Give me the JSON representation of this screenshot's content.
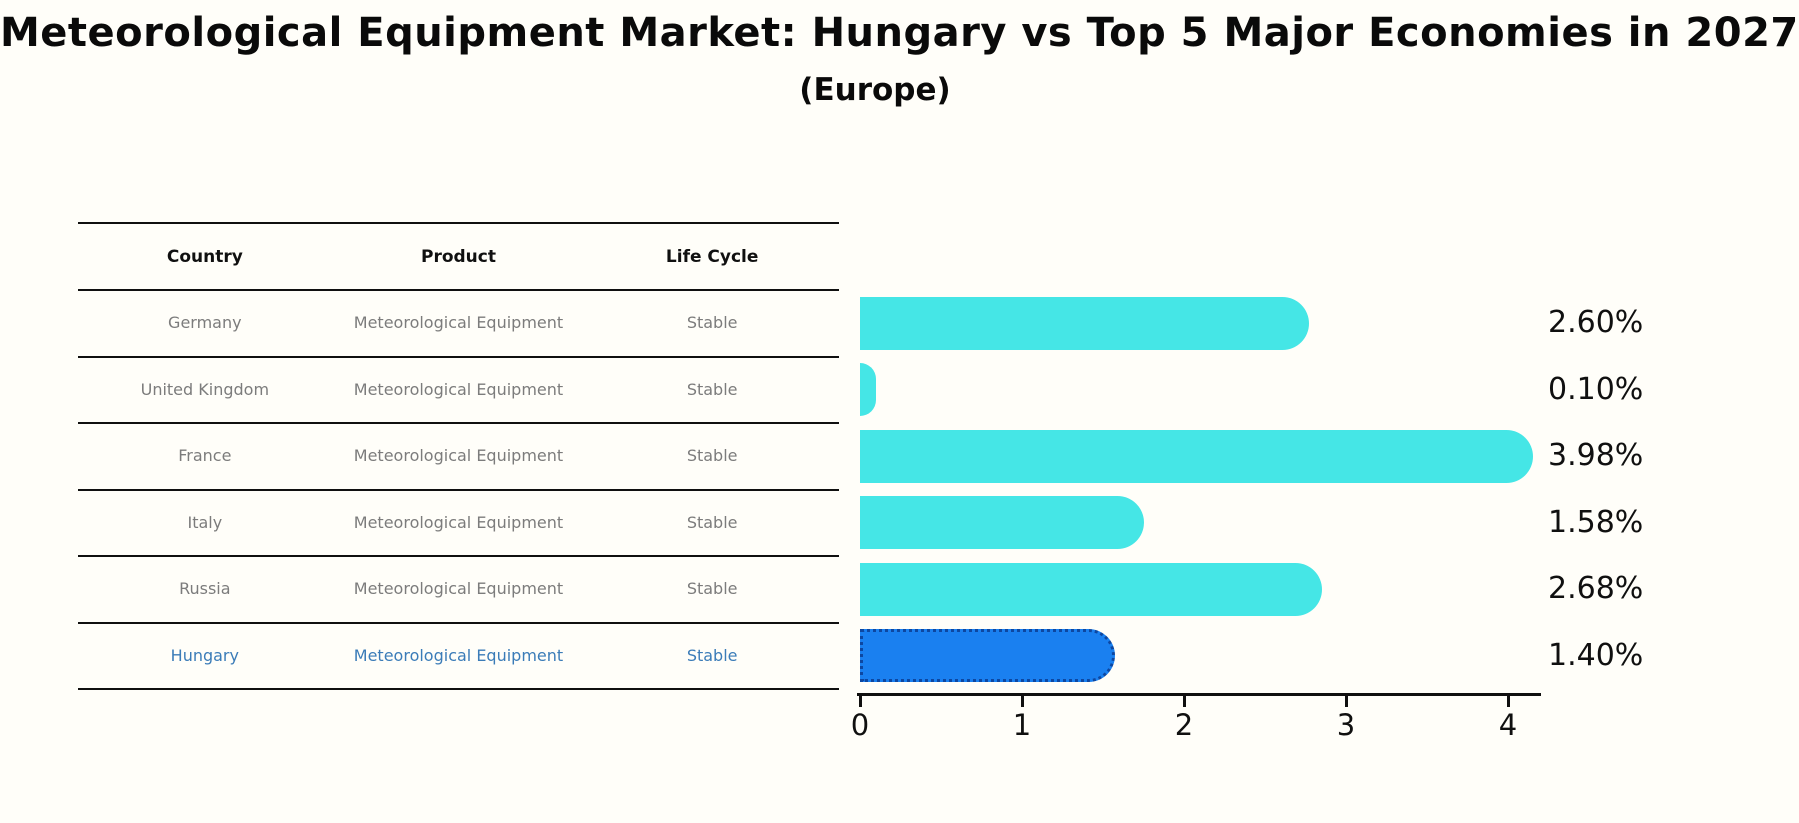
{
  "title": "Meteorological Equipment Market: Hungary vs Top 5 Major Economies in 2027",
  "subtitle": "(Europe)",
  "table": {
    "headers": [
      "Country",
      "Product",
      "Life Cycle"
    ],
    "rows": [
      {
        "country": "Germany",
        "product": "Meteorological Equipment",
        "life_cycle": "Stable",
        "value_label": "2.60%",
        "highlight": false
      },
      {
        "country": "United Kingdom",
        "product": "Meteorological Equipment",
        "life_cycle": "Stable",
        "value_label": "0.10%",
        "highlight": false
      },
      {
        "country": "France",
        "product": "Meteorological Equipment",
        "life_cycle": "Stable",
        "value_label": "3.98%",
        "highlight": false
      },
      {
        "country": "Italy",
        "product": "Meteorological Equipment",
        "life_cycle": "Stable",
        "value_label": "1.58%",
        "highlight": false
      },
      {
        "country": "Russia",
        "product": "Meteorological Equipment",
        "life_cycle": "Stable",
        "value_label": "2.68%",
        "highlight": false
      },
      {
        "country": "Hungary",
        "product": "Meteorological Equipment",
        "life_cycle": "Stable",
        "value_label": "1.40%",
        "highlight": true
      }
    ]
  },
  "chart_data": {
    "type": "bar",
    "orientation": "horizontal",
    "title": "Meteorological Equipment Market: Hungary vs Top 5 Major Economies in 2027",
    "subtitle": "(Europe)",
    "categories": [
      "Germany",
      "United Kingdom",
      "France",
      "Italy",
      "Russia",
      "Hungary"
    ],
    "values": [
      2.6,
      0.1,
      3.98,
      1.58,
      2.68,
      1.4
    ],
    "value_labels": [
      "2.60%",
      "0.10%",
      "3.98%",
      "1.58%",
      "2.68%",
      "1.40%"
    ],
    "xlabel": "",
    "ylabel": "",
    "xlim": [
      0,
      4.2
    ],
    "xticks": [
      "0",
      "1",
      "2",
      "3",
      "4"
    ],
    "grid": false,
    "legend": false,
    "bar_color": "#45e6e6",
    "highlight_category": "Hungary",
    "highlight_bar_color": "#1a80f0",
    "highlight_edge_color": "#0d47a1",
    "highlight_text_color": "#3b7cb8"
  },
  "colors": {
    "background": "#fffef9",
    "text": "#101010",
    "muted_text": "#7c7c7c",
    "accent_cyan": "#45e6e6",
    "accent_blue": "#1a80f0"
  }
}
